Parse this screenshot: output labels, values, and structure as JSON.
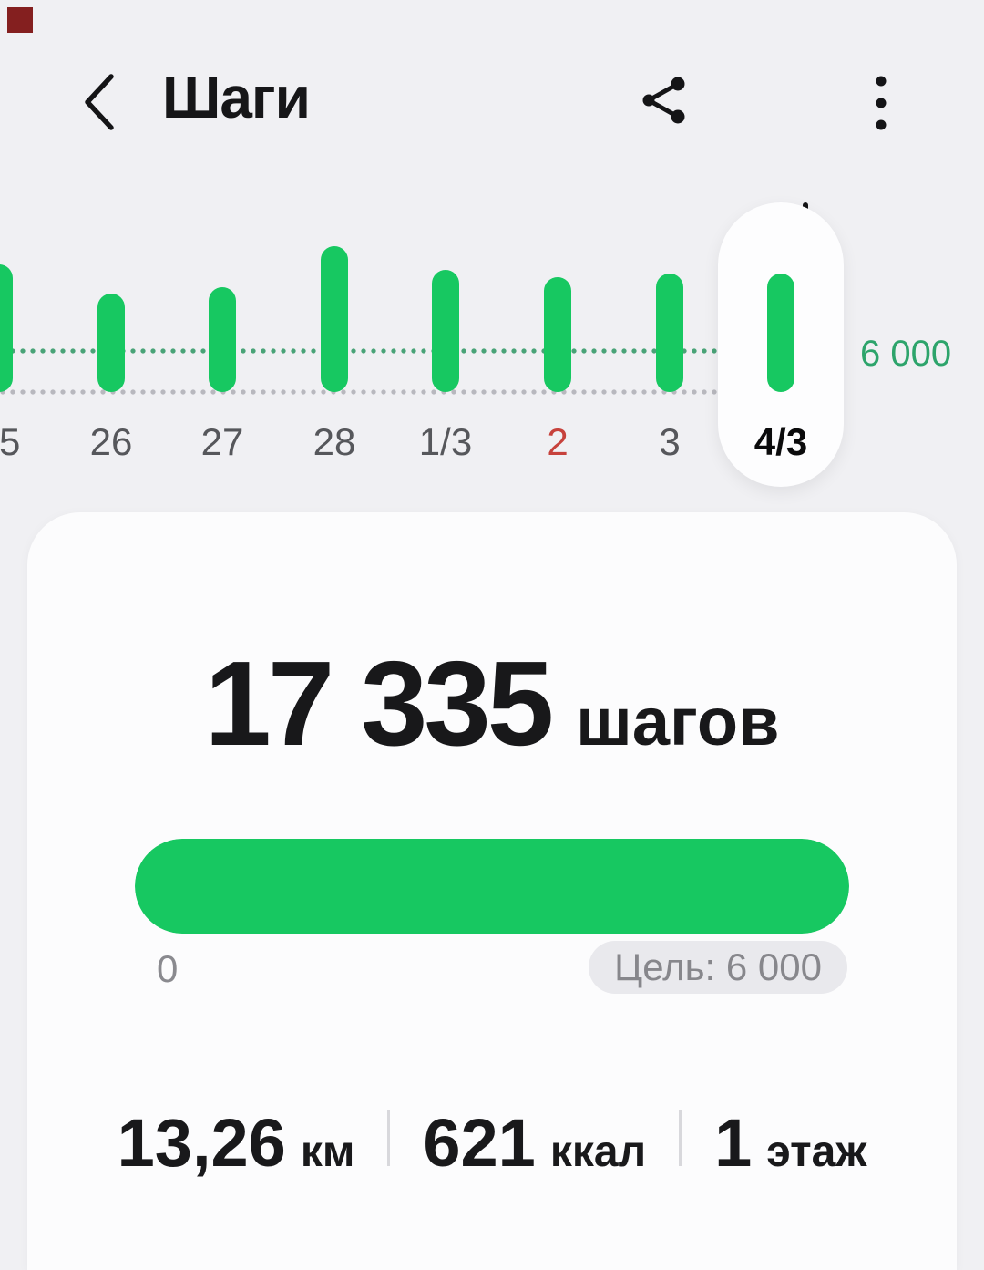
{
  "header": {
    "title": "Шаги",
    "back_icon": "chevron-left",
    "action_icons": [
      "share",
      "bar-chart",
      "more-vertical"
    ]
  },
  "chart_data": {
    "type": "bar",
    "categories": [
      "25",
      "26",
      "27",
      "28",
      "1/3",
      "2",
      "3",
      "4/3"
    ],
    "values_est_steps": [
      18700,
      14400,
      15300,
      21300,
      17900,
      16800,
      17300,
      17335
    ],
    "goal_line": {
      "value": 6000,
      "label": "6 000"
    },
    "selected_index": 7,
    "red_label_indices": [
      5
    ],
    "first_bar_clipped_left": true,
    "legend_position": "none",
    "grid": "dotted-goal-and-baseline"
  },
  "summary": {
    "steps_value": "17 335",
    "steps_unit": "шагов",
    "progress_percent": 100,
    "range_start_label": "0",
    "goal_chip_label": "Цель: 6 000"
  },
  "stats": [
    {
      "value": "13,26",
      "unit": "км"
    },
    {
      "value": "621",
      "unit": "ккал"
    },
    {
      "value": "1",
      "unit": "этаж"
    }
  ],
  "colors": {
    "accent_green": "#17c861",
    "goal_text_green": "#2da46b",
    "dotted_goal_line": "#49a377",
    "dotted_baseline": "#b8b8be",
    "background": "#f0f0f3",
    "card_background": "#fcfcfd",
    "red_label": "#c7423c",
    "corner_artifact": "#841f1f"
  }
}
